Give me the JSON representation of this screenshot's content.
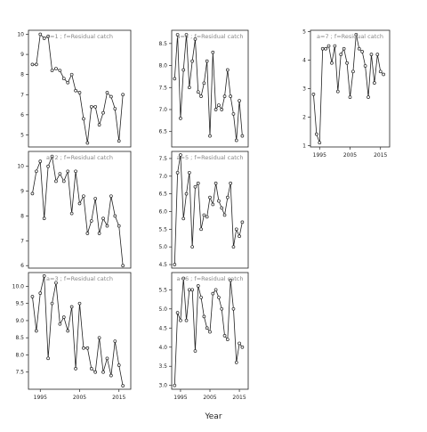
{
  "figure": {
    "xlabel": "Year",
    "colors": {
      "line": "#222222",
      "frame": "#222222",
      "panel_label": "#888888",
      "point_fill": "#ffffff"
    }
  },
  "chart_data": [
    {
      "type": "line",
      "panel_label": "a=1 ; f=Residual catch",
      "x": [
        1993,
        1994,
        1995,
        1996,
        1997,
        1998,
        1999,
        2000,
        2001,
        2002,
        2003,
        2004,
        2005,
        2006,
        2007,
        2008,
        2009,
        2010,
        2011,
        2012,
        2013,
        2014,
        2015,
        2016
      ],
      "y": [
        8.5,
        8.5,
        10.0,
        9.8,
        9.9,
        8.2,
        8.3,
        8.2,
        7.8,
        7.6,
        8.0,
        7.2,
        7.1,
        5.8,
        4.6,
        6.4,
        6.4,
        5.5,
        6.1,
        7.1,
        6.9,
        6.3,
        4.7,
        7.0
      ],
      "xlim": [
        1992,
        2018
      ],
      "ylim": [
        4.4,
        10.2
      ],
      "yticks": [
        5,
        6,
        7,
        8,
        9,
        10
      ],
      "ytick_labels": [
        "5",
        "6",
        "7",
        "8",
        "9",
        "10"
      ],
      "xticks": [],
      "xtick_labels": []
    },
    {
      "type": "line",
      "panel_label": "a=4 ; f=Residual catch",
      "x": [
        1993,
        1994,
        1995,
        1996,
        1997,
        1998,
        1999,
        2000,
        2001,
        2002,
        2003,
        2004,
        2005,
        2006,
        2007,
        2008,
        2009,
        2010,
        2011,
        2012,
        2013,
        2014,
        2015,
        2016
      ],
      "y": [
        7.7,
        8.7,
        6.8,
        7.9,
        8.7,
        7.5,
        8.1,
        8.6,
        7.4,
        7.3,
        7.6,
        8.1,
        6.4,
        8.3,
        7.0,
        7.1,
        7.0,
        7.3,
        7.9,
        7.3,
        6.9,
        6.3,
        7.2,
        6.4
      ],
      "xlim": [
        1992,
        2018
      ],
      "ylim": [
        6.15,
        8.8
      ],
      "yticks": [
        6.5,
        7.0,
        7.5,
        8.0,
        8.5
      ],
      "ytick_labels": [
        "6.5",
        "7.0",
        "7.5",
        "8.0",
        "8.5"
      ],
      "xticks": [],
      "xtick_labels": []
    },
    {
      "type": "line",
      "panel_label": "a=7 ; f=Residual catch",
      "x": [
        1993,
        1994,
        1995,
        1996,
        1997,
        1998,
        1999,
        2000,
        2001,
        2002,
        2003,
        2004,
        2005,
        2006,
        2007,
        2008,
        2009,
        2010,
        2011,
        2012,
        2013,
        2014,
        2015,
        2016
      ],
      "y": [
        2.8,
        1.4,
        1.1,
        4.4,
        4.4,
        4.5,
        3.9,
        4.5,
        2.9,
        4.2,
        4.4,
        3.9,
        2.7,
        3.6,
        4.9,
        4.4,
        4.3,
        3.8,
        2.7,
        4.2,
        3.2,
        4.2,
        3.6,
        3.5
      ],
      "xlim": [
        1992,
        2018
      ],
      "ylim": [
        0.95,
        5.05
      ],
      "yticks": [
        1,
        2,
        3,
        4,
        5
      ],
      "ytick_labels": [
        "1",
        "2",
        "3",
        "4",
        "5"
      ],
      "xticks": [
        1995,
        2005,
        2015
      ],
      "xtick_labels": [
        "1995",
        "2005",
        "2015"
      ]
    },
    {
      "type": "line",
      "panel_label": "a=2 ; f=Residual catch",
      "x": [
        1993,
        1994,
        1995,
        1996,
        1997,
        1998,
        1999,
        2000,
        2001,
        2002,
        2003,
        2004,
        2005,
        2006,
        2007,
        2008,
        2009,
        2010,
        2011,
        2012,
        2013,
        2014,
        2015,
        2016
      ],
      "y": [
        8.9,
        9.8,
        10.2,
        7.9,
        10.0,
        10.4,
        9.4,
        9.7,
        9.4,
        9.8,
        8.1,
        9.8,
        8.5,
        8.8,
        7.3,
        7.8,
        8.7,
        7.3,
        7.9,
        7.6,
        8.8,
        8.0,
        7.6,
        6.0
      ],
      "xlim": [
        1992,
        2018
      ],
      "ylim": [
        5.9,
        10.6
      ],
      "yticks": [
        6,
        7,
        8,
        9,
        10
      ],
      "ytick_labels": [
        "6",
        "7",
        "8",
        "9",
        "10"
      ],
      "xticks": [],
      "xtick_labels": []
    },
    {
      "type": "line",
      "panel_label": "a=5 ; f=Residual catch",
      "x": [
        1993,
        1994,
        1995,
        1996,
        1997,
        1998,
        1999,
        2000,
        2001,
        2002,
        2003,
        2004,
        2005,
        2006,
        2007,
        2008,
        2009,
        2010,
        2011,
        2012,
        2013,
        2014,
        2015,
        2016
      ],
      "y": [
        4.5,
        7.1,
        7.6,
        5.8,
        6.5,
        7.1,
        5.0,
        6.7,
        6.8,
        5.5,
        5.9,
        5.85,
        6.4,
        6.2,
        6.8,
        6.3,
        6.1,
        5.9,
        6.4,
        6.8,
        5.0,
        5.5,
        5.3,
        5.7
      ],
      "xlim": [
        1992,
        2018
      ],
      "ylim": [
        4.4,
        7.7
      ],
      "yticks": [
        4.5,
        5.0,
        5.5,
        6.0,
        6.5,
        7.0,
        7.5
      ],
      "ytick_labels": [
        "4.5",
        "5.0",
        "5.5",
        "6.0",
        "6.5",
        "7.0",
        "7.5"
      ],
      "xticks": [],
      "xtick_labels": []
    },
    {
      "type": "line",
      "panel_label": "a=3 ; f=Residual catch",
      "x": [
        1993,
        1994,
        1995,
        1996,
        1997,
        1998,
        1999,
        2000,
        2001,
        2002,
        2003,
        2004,
        2005,
        2006,
        2007,
        2008,
        2009,
        2010,
        2011,
        2012,
        2013,
        2014,
        2015,
        2016
      ],
      "y": [
        9.7,
        8.7,
        9.8,
        10.3,
        7.9,
        9.5,
        10.1,
        8.9,
        9.1,
        8.7,
        9.4,
        7.6,
        9.5,
        8.2,
        8.2,
        7.6,
        7.5,
        8.5,
        7.5,
        7.9,
        7.4,
        8.4,
        7.7,
        7.1
      ],
      "xlim": [
        1992,
        2018
      ],
      "ylim": [
        7.0,
        10.4
      ],
      "yticks": [
        7.5,
        8.0,
        8.5,
        9.0,
        9.5,
        10.0
      ],
      "ytick_labels": [
        "7.5",
        "8.0",
        "8.5",
        "9.0",
        "9.5",
        "10.0"
      ],
      "xticks": [
        1995,
        2005,
        2015
      ],
      "xtick_labels": [
        "1995",
        "2005",
        "2015"
      ]
    },
    {
      "type": "line",
      "panel_label": "a=6 ; f=Residual catch",
      "x": [
        1993,
        1994,
        1995,
        1996,
        1997,
        1998,
        1999,
        2000,
        2001,
        2002,
        2003,
        2004,
        2005,
        2006,
        2007,
        2008,
        2009,
        2010,
        2011,
        2012,
        2013,
        2014,
        2015,
        2016
      ],
      "y": [
        3.0,
        4.9,
        4.7,
        5.8,
        4.7,
        5.5,
        5.5,
        3.9,
        5.6,
        5.3,
        4.8,
        4.5,
        4.4,
        5.4,
        5.5,
        5.3,
        5.0,
        4.3,
        4.2,
        5.75,
        5.0,
        3.6,
        4.1,
        4.0
      ],
      "xlim": [
        1992,
        2018
      ],
      "ylim": [
        2.9,
        5.95
      ],
      "yticks": [
        3.0,
        3.5,
        4.0,
        4.5,
        5.0,
        5.5
      ],
      "ytick_labels": [
        "3.0",
        "3.5",
        "4.0",
        "4.5",
        "5.0",
        "5.5"
      ],
      "xticks": [
        1995,
        2005,
        2015
      ],
      "xtick_labels": [
        "1995",
        "2005",
        "2015"
      ]
    }
  ]
}
